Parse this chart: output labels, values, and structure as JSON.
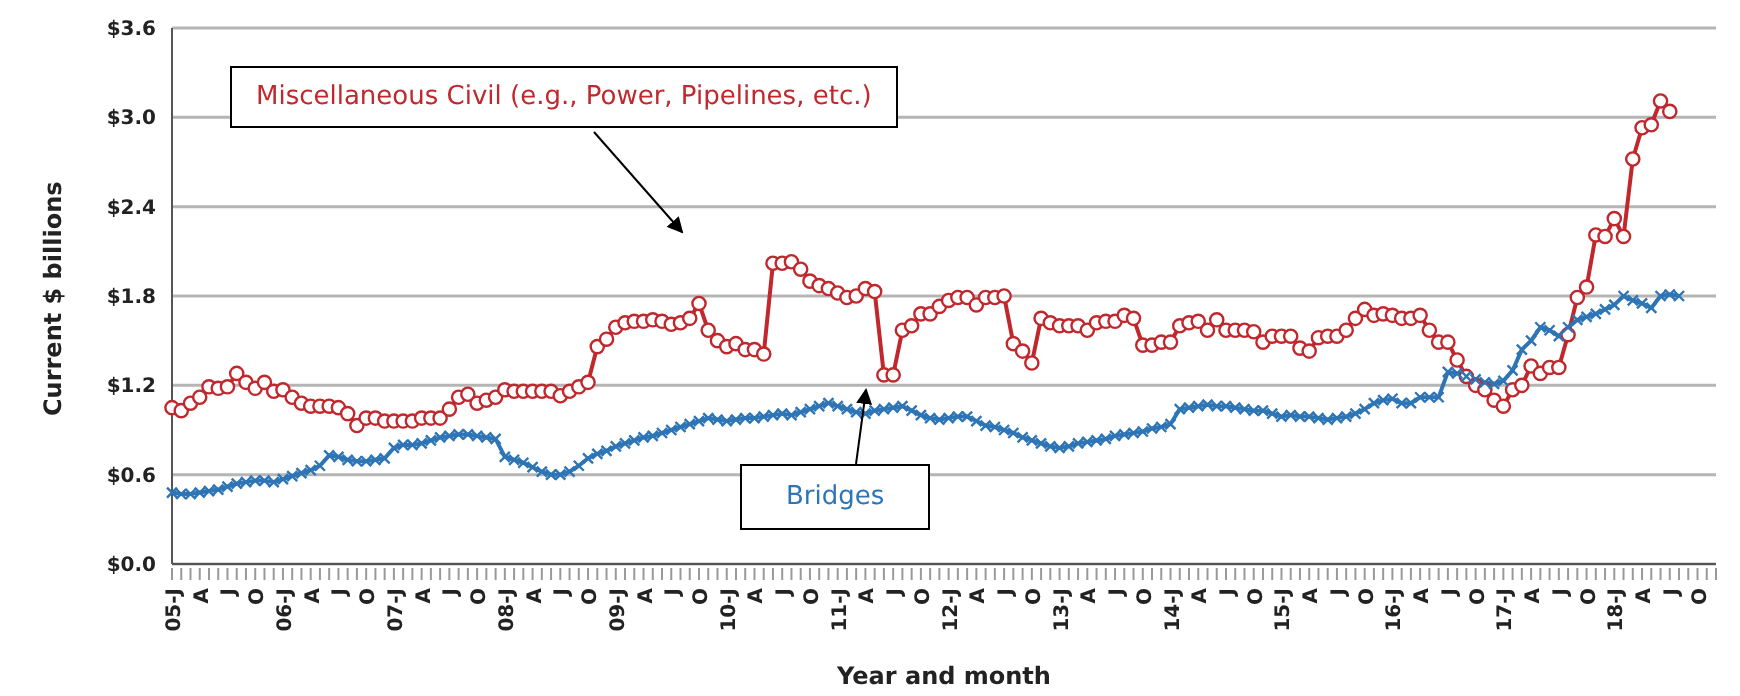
{
  "chart_data": {
    "type": "line",
    "xlabel": "Year and month",
    "ylabel": "Current $ billions",
    "categories": [
      "05-J",
      null,
      null,
      "A",
      null,
      null,
      "J",
      null,
      null,
      "O",
      null,
      null,
      "06-J",
      null,
      null,
      "A",
      null,
      null,
      "J",
      null,
      null,
      "O",
      null,
      null,
      "07-J",
      null,
      null,
      "A",
      null,
      null,
      "J",
      null,
      null,
      "O",
      null,
      null,
      "08-J",
      null,
      null,
      "A",
      null,
      null,
      "J",
      null,
      null,
      "O",
      null,
      null,
      "09-J",
      null,
      null,
      "A",
      null,
      null,
      "J",
      null,
      null,
      "O",
      null,
      null,
      "10-J",
      null,
      null,
      "A",
      null,
      null,
      "J",
      null,
      null,
      "O",
      null,
      null,
      "11-J",
      null,
      null,
      "A",
      null,
      null,
      "J",
      null,
      null,
      "O",
      null,
      null,
      "12-J",
      null,
      null,
      "A",
      null,
      null,
      "J",
      null,
      null,
      "O",
      null,
      null,
      "13-J",
      null,
      null,
      "A",
      null,
      null,
      "J",
      null,
      null,
      "O",
      null,
      null,
      "14-J",
      null,
      null,
      "A",
      null,
      null,
      "J",
      null,
      null,
      "O",
      null,
      null,
      "15-J",
      null,
      null,
      "A",
      null,
      null,
      "J",
      null,
      null,
      "O",
      null,
      null,
      "16-J",
      null,
      null,
      "A",
      null,
      null,
      "J",
      null,
      null,
      "O",
      null,
      null,
      "17-J",
      null,
      null,
      "A",
      null,
      null,
      "J",
      null,
      null,
      "O",
      null,
      null,
      "18-J",
      null,
      null,
      "A",
      null,
      null,
      "J",
      null,
      null,
      "O",
      null,
      null
    ],
    "series": [
      {
        "name": "Miscellaneous Civil (e.g., Power, Pipelines, etc.)",
        "color": "#c0282d",
        "marker": "circle",
        "values": [
          1.05,
          1.03,
          1.08,
          1.12,
          1.19,
          1.18,
          1.19,
          1.28,
          1.22,
          1.18,
          1.22,
          1.16,
          1.17,
          1.12,
          1.08,
          1.06,
          1.06,
          1.06,
          1.05,
          1.01,
          0.93,
          0.98,
          0.98,
          0.96,
          0.96,
          0.96,
          0.96,
          0.98,
          0.98,
          0.98,
          1.04,
          1.12,
          1.14,
          1.08,
          1.1,
          1.12,
          1.17,
          1.16,
          1.16,
          1.16,
          1.16,
          1.16,
          1.13,
          1.16,
          1.19,
          1.22,
          1.46,
          1.51,
          1.59,
          1.62,
          1.63,
          1.63,
          1.64,
          1.63,
          1.61,
          1.62,
          1.65,
          1.75,
          1.57,
          1.5,
          1.46,
          1.48,
          1.44,
          1.44,
          1.41,
          2.02,
          2.02,
          2.03,
          1.98,
          1.9,
          1.87,
          1.85,
          1.82,
          1.79,
          1.8,
          1.85,
          1.83,
          1.27,
          1.27,
          1.57,
          1.6,
          1.68,
          1.68,
          1.73,
          1.77,
          1.79,
          1.79,
          1.74,
          1.79,
          1.79,
          1.8,
          1.48,
          1.43,
          1.35,
          1.65,
          1.62,
          1.6,
          1.6,
          1.6,
          1.57,
          1.62,
          1.63,
          1.63,
          1.67,
          1.65,
          1.47,
          1.47,
          1.49,
          1.49,
          1.6,
          1.62,
          1.63,
          1.57,
          1.64,
          1.57,
          1.57,
          1.57,
          1.56,
          1.49,
          1.53,
          1.53,
          1.53,
          1.45,
          1.43,
          1.52,
          1.53,
          1.53,
          1.57,
          1.65,
          1.71,
          1.67,
          1.68,
          1.67,
          1.65,
          1.65,
          1.67,
          1.57,
          1.49,
          1.49,
          1.37,
          1.26,
          1.2,
          1.17,
          1.1,
          1.06,
          1.17,
          1.2,
          1.33,
          1.28,
          1.32,
          1.32,
          1.54,
          1.79,
          1.86,
          2.21,
          2.2,
          2.32,
          2.2,
          2.72,
          2.93,
          2.95,
          3.11,
          3.04,
          null,
          null,
          null,
          null,
          null
        ]
      },
      {
        "name": "Bridges",
        "color": "#2e75b6",
        "marker": "cross",
        "values": [
          0.48,
          0.47,
          0.47,
          0.48,
          0.49,
          0.5,
          0.52,
          0.54,
          0.55,
          0.56,
          0.56,
          0.55,
          0.57,
          0.59,
          0.61,
          0.63,
          0.66,
          0.73,
          0.72,
          0.7,
          0.69,
          0.69,
          0.7,
          0.71,
          0.78,
          0.8,
          0.8,
          0.81,
          0.83,
          0.85,
          0.86,
          0.87,
          0.87,
          0.86,
          0.85,
          0.84,
          0.72,
          0.7,
          0.68,
          0.65,
          0.62,
          0.6,
          0.6,
          0.62,
          0.66,
          0.71,
          0.74,
          0.76,
          0.79,
          0.81,
          0.83,
          0.85,
          0.86,
          0.88,
          0.9,
          0.92,
          0.94,
          0.96,
          0.98,
          0.97,
          0.96,
          0.97,
          0.98,
          0.98,
          0.99,
          1.0,
          1.01,
          1.0,
          1.02,
          1.04,
          1.06,
          1.08,
          1.06,
          1.04,
          1.02,
          1.01,
          1.03,
          1.04,
          1.05,
          1.06,
          1.03,
          1.0,
          0.98,
          0.97,
          0.98,
          0.99,
          0.99,
          0.96,
          0.93,
          0.92,
          0.9,
          0.88,
          0.85,
          0.83,
          0.81,
          0.79,
          0.78,
          0.79,
          0.81,
          0.82,
          0.83,
          0.84,
          0.86,
          0.87,
          0.88,
          0.89,
          0.91,
          0.92,
          0.94,
          1.04,
          1.05,
          1.06,
          1.07,
          1.06,
          1.06,
          1.05,
          1.04,
          1.03,
          1.03,
          1.01,
          0.99,
          1.0,
          0.99,
          0.99,
          0.98,
          0.97,
          0.98,
          0.99,
          1.01,
          1.04,
          1.08,
          1.1,
          1.11,
          1.08,
          1.08,
          1.12,
          1.12,
          1.12,
          1.29,
          1.28,
          1.26,
          1.24,
          1.22,
          1.21,
          1.23,
          1.3,
          1.44,
          1.5,
          1.59,
          1.57,
          1.53,
          1.59,
          1.64,
          1.66,
          1.68,
          1.71,
          1.74,
          1.8,
          1.77,
          1.75,
          1.72,
          1.8,
          1.81,
          1.8,
          null,
          null,
          null,
          null
        ]
      }
    ],
    "ylim": [
      0,
      3.6
    ],
    "yticks": [
      {
        "value": 0,
        "label": "$0.0"
      },
      {
        "value": 0.6,
        "label": "$0.6"
      },
      {
        "value": 1.2,
        "label": "$1.2"
      },
      {
        "value": 1.8,
        "label": "$1.8"
      },
      {
        "value": 2.4,
        "label": "$2.4"
      },
      {
        "value": 3.0,
        "label": "$3.0"
      },
      {
        "value": 3.6,
        "label": "$3.6"
      }
    ],
    "grid": "y"
  }
}
